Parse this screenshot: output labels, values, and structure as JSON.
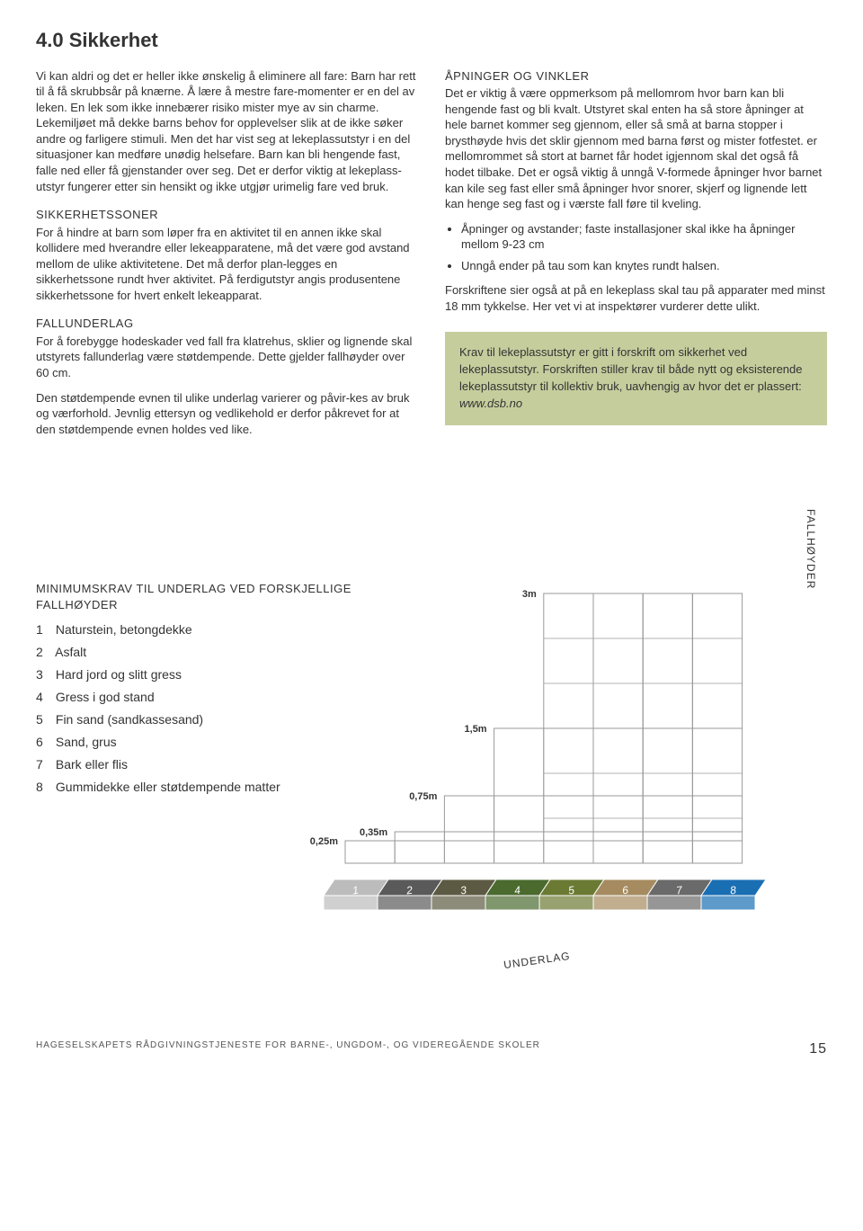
{
  "heading": "4.0 Sikkerhet",
  "col1": {
    "p1": "Vi kan aldri og det er heller ikke ønskelig å eliminere all fare: Barn har rett til å få skrubbsår på knærne. Å lære å mestre fare-momenter er en del av leken. En lek som ikke innebærer risiko mister mye av sin charme. Lekemiljøet må dekke barns behov for opplevelser slik at de ikke søker andre og farligere stimuli. Men det har vist seg at lekeplassutstyr i en del situasjoner kan medføre unødig helsefare. Barn kan bli hengende fast, falle ned eller få gjenstander over seg. Det er derfor viktig at lekeplass-utstyr fungerer etter sin hensikt og ikke utgjør urimelig fare ved bruk.",
    "sub1": "SIKKERHETSSONER",
    "p2": "For å hindre at barn som løper fra en aktivitet til en annen ikke skal kollidere med hverandre eller lekeapparatene, må det være god avstand mellom de ulike aktivitetene. Det må derfor plan-legges en sikkerhetssone rundt hver aktivitet. På ferdigutstyr angis produsentene sikkerhetssone for hvert enkelt lekeapparat.",
    "sub2": "FALLUNDERLAG",
    "p3": "For å forebygge hodeskader ved fall fra klatrehus, sklier og lignende skal utstyrets fallunderlag være støtdempende. Dette gjelder fallhøyder over 60 cm.",
    "p4": "Den støtdempende evnen til ulike underlag varierer og påvir-kes av bruk og værforhold. Jevnlig ettersyn og vedlikehold er derfor påkrevet for at den støtdempende evnen holdes ved like."
  },
  "col2": {
    "sub1": "ÅPNINGER OG VINKLER",
    "p1": "Det er viktig å være oppmerksom på mellomrom hvor barn kan bli hengende fast og bli kvalt. Utstyret skal enten ha så store åpninger at hele barnet kommer seg gjennom, eller så små at barna stopper i brysthøyde hvis det sklir gjennom med barna først og mister fotfestet. er mellomrommet så stort at barnet får hodet igjennom skal det også få hodet tilbake. Det er også viktig å unngå V-formede åpninger hvor barnet kan kile seg fast eller små åpninger hvor snorer, skjerf og lignende lett kan henge seg fast og i værste fall føre til kveling.",
    "b1": "Åpninger og avstander; faste installasjoner skal ikke ha åpninger mellom 9-23 cm",
    "b2": "Unngå ender på tau som kan knytes rundt halsen.",
    "p2": "Forskriftene sier også at på en lekeplass skal tau på apparater med minst 18 mm tykkelse. Her vet vi at inspektører vurderer dette ulikt.",
    "box": "Krav til lekeplassutstyr er gitt i forskrift om sikkerhet ved lekeplassutstyr. Forskriften stiller krav til både nytt og eksisterende lekeplassutstyr til kollektiv bruk, uavhengig av hvor det er plassert: ",
    "boxlink": "www.dsb.no"
  },
  "diagram": {
    "heading": "MINIMUMSKRAV TIL UNDERLAG VED FORSKJELLIGE FALLHØYDER",
    "items": [
      {
        "n": "1",
        "t": "Naturstein, betongdekke"
      },
      {
        "n": "2",
        "t": "Asfalt"
      },
      {
        "n": "3",
        "t": "Hard jord og slitt gress"
      },
      {
        "n": "4",
        "t": "Gress i god stand"
      },
      {
        "n": "5",
        "t": "Fin sand (sandkassesand)"
      },
      {
        "n": "6",
        "t": "Sand, grus"
      },
      {
        "n": "7",
        "t": "Bark eller flis"
      },
      {
        "n": "8",
        "t": "Gummidekke eller støtdempende matter"
      }
    ],
    "vlabel": "FALLHØYDER",
    "underlag": "UNDERLAG",
    "heights": [
      "0,25m",
      "0,35m",
      "0,75m",
      "1,5m",
      "3m"
    ],
    "tile_colors": [
      "#bcbcbc",
      "#5a5a5a",
      "#5c5a42",
      "#4a6a2e",
      "#6b7a33",
      "#a58b5f",
      "#6a6a6a",
      "#1a6fb3"
    ],
    "grid_color": "#9a9a9a",
    "ground_color": "#e2e2dc"
  },
  "footer": {
    "text": "HAGESELSKAPETS RÅDGIVNINGSTJENESTE FOR BARNE-, UNGDOM-, OG VIDEREGÅENDE SKOLER",
    "page": "15"
  }
}
